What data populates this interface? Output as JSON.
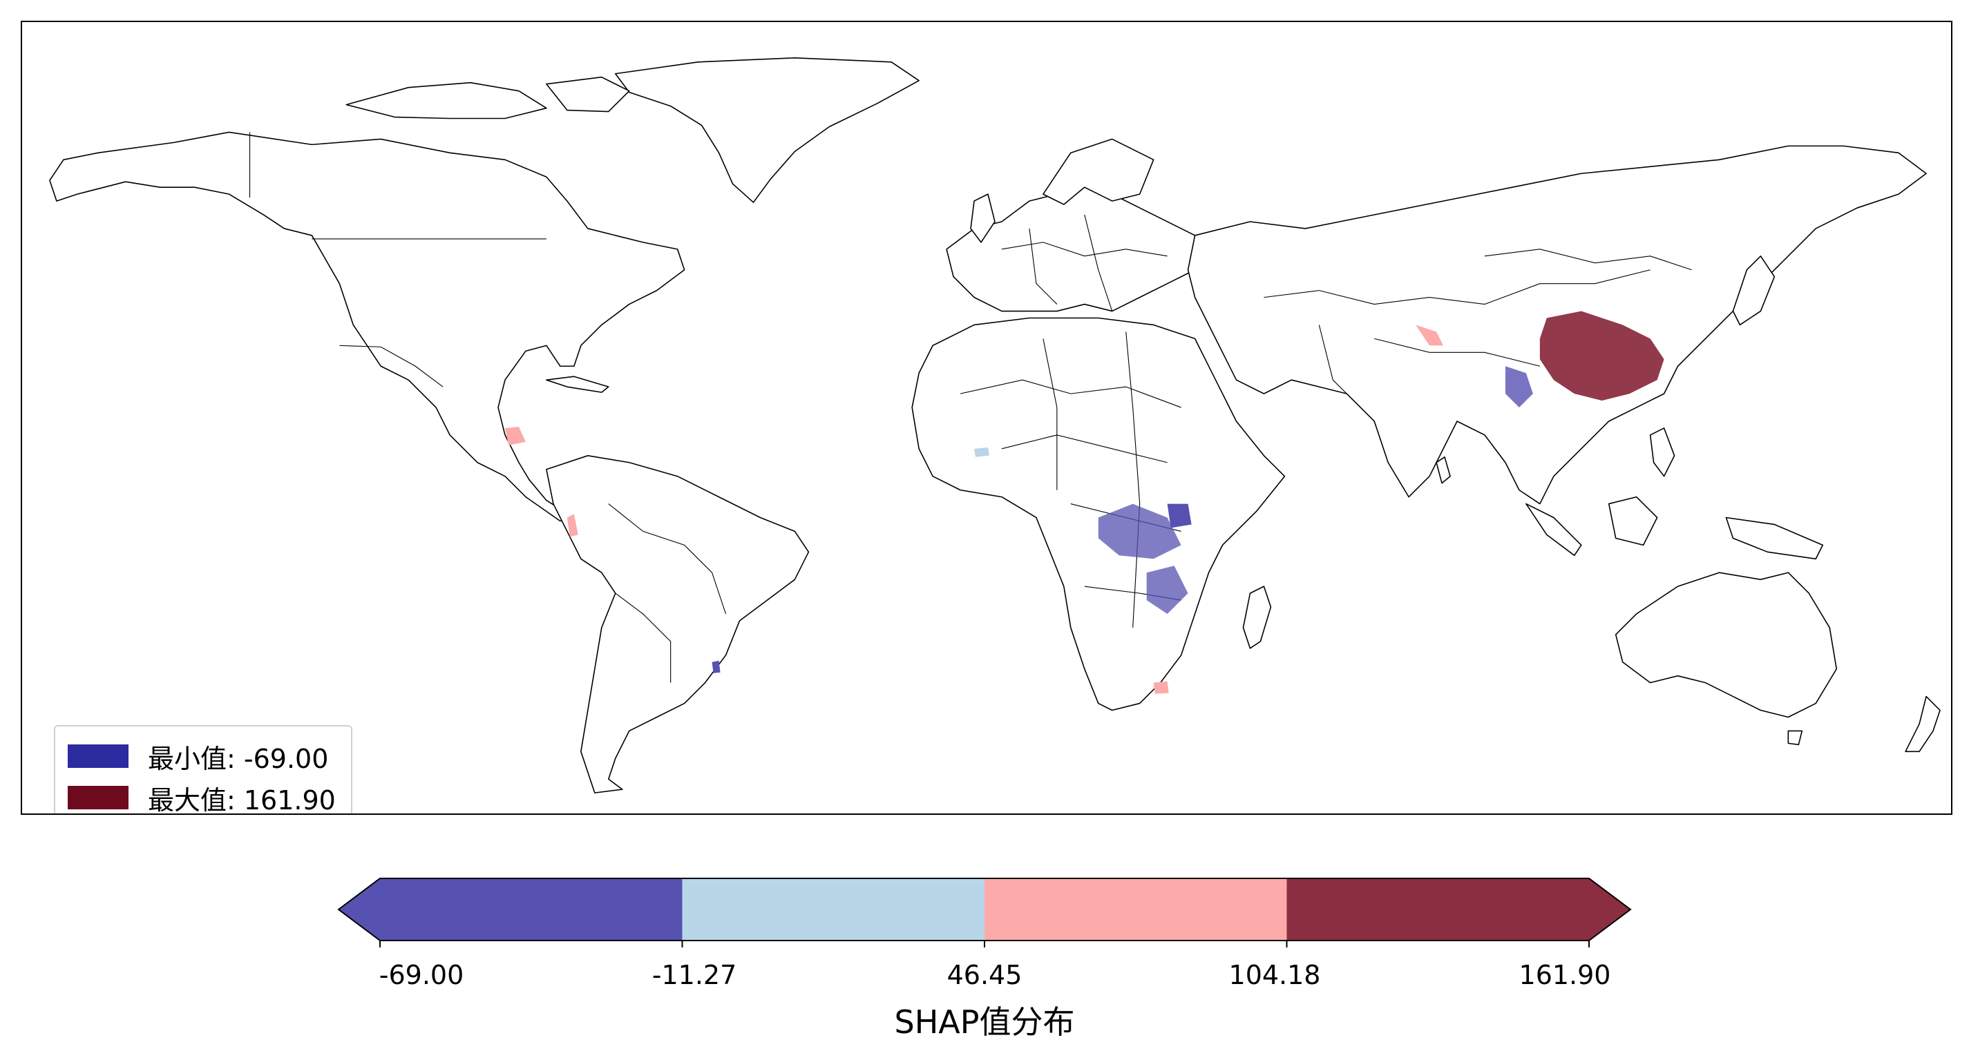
{
  "map": {
    "legend": {
      "min_label": "最小值: -69.00",
      "max_label": "最大值: 161.90",
      "min_color": "#2c2ca0",
      "max_color": "#6e0a1e"
    },
    "colorbar": {
      "title": "SHAP值分布",
      "ticks": [
        "-69.00",
        "-11.27",
        "46.45",
        "104.18",
        "161.90"
      ],
      "tick_values": [
        -69.0,
        -11.27,
        46.45,
        104.18,
        161.9
      ],
      "bin_colors": [
        "#5751b1",
        "#b8d6e8",
        "#fdaaaa",
        "#8c2e42"
      ],
      "extend": "both"
    },
    "highlight_regions": [
      {
        "region": "South China",
        "class": "max"
      },
      {
        "region": "Central Africa",
        "class": "min"
      },
      {
        "region": "Southeast Asia",
        "class": "min"
      }
    ]
  }
}
